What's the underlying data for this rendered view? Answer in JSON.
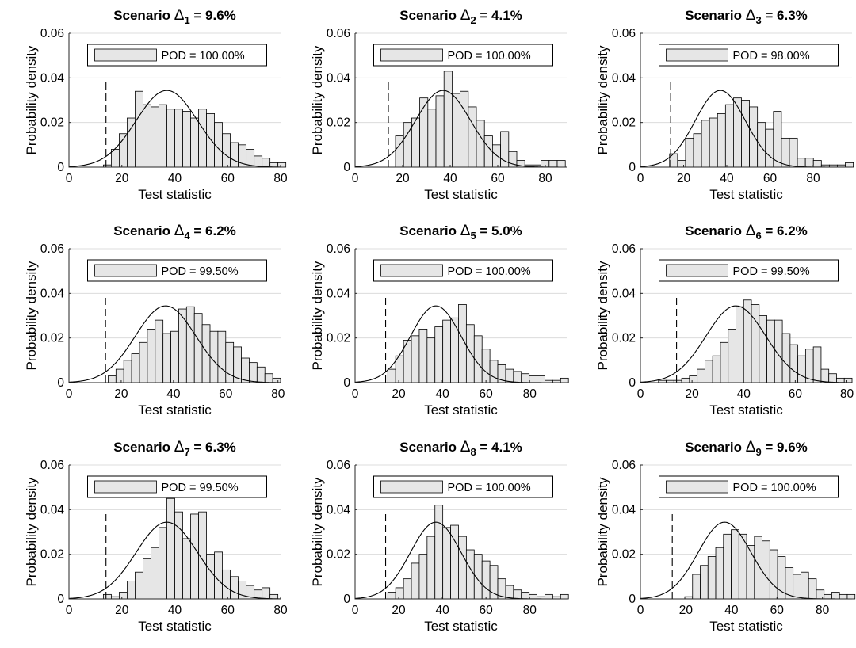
{
  "figure": {
    "ylabel": "Probability density",
    "xlabel": "Test statistic",
    "title_prefix": "Scenario ",
    "delta_symbol": "Δ"
  },
  "chart_data": [
    {
      "type": "bar",
      "title_sub": "1",
      "title_value": " = 9.6%",
      "legend": "POD = 100.00%",
      "xlim": [
        0,
        80
      ],
      "xticks": [
        0,
        20,
        40,
        60,
        80
      ],
      "ylim": [
        0,
        0.06
      ],
      "yticks": [
        "0",
        "0.02",
        "0.04",
        "0.06"
      ],
      "grid": true,
      "legend_position": "top",
      "threshold": 14,
      "normal_fit": {
        "mean": 37,
        "sd": 11.6
      },
      "bin_width": 3,
      "bin_starts": [
        13,
        16,
        19,
        22,
        25,
        28,
        31,
        34,
        37,
        40,
        43,
        46,
        49,
        52,
        55,
        58,
        61,
        64,
        67,
        70,
        73,
        76,
        79
      ],
      "values": [
        0.001,
        0.008,
        0.015,
        0.022,
        0.034,
        0.028,
        0.027,
        0.028,
        0.026,
        0.026,
        0.025,
        0.022,
        0.026,
        0.024,
        0.02,
        0.015,
        0.011,
        0.01,
        0.008,
        0.005,
        0.004,
        0.002,
        0.002
      ]
    },
    {
      "type": "bar",
      "title_sub": "2",
      "title_value": " = 4.1%",
      "legend": "POD = 100.00%",
      "xlim": [
        0,
        89
      ],
      "xticks": [
        0,
        20,
        40,
        60,
        80
      ],
      "ylim": [
        0,
        0.06
      ],
      "yticks": [
        "0",
        "0.02",
        "0.04",
        "0.06"
      ],
      "grid": true,
      "legend_position": "top",
      "threshold": 14,
      "normal_fit": {
        "mean": 37,
        "sd": 11.6
      },
      "bin_width": 3.4,
      "bin_starts": [
        17,
        20.4,
        23.8,
        27.2,
        30.6,
        34,
        37.4,
        40.8,
        44.2,
        47.6,
        51,
        54.4,
        57.8,
        61.2,
        64.6,
        68,
        71.4,
        74.8,
        78.2,
        81.6,
        85
      ],
      "values": [
        0.014,
        0.02,
        0.022,
        0.031,
        0.026,
        0.032,
        0.043,
        0.033,
        0.034,
        0.027,
        0.021,
        0.014,
        0.01,
        0.016,
        0.007,
        0.003,
        0.001,
        0.001,
        0.003,
        0.003,
        0.003
      ]
    },
    {
      "type": "bar",
      "title_sub": "3",
      "title_value": " = 6.3%",
      "legend": "POD = 98.00%",
      "xlim": [
        0,
        98
      ],
      "xticks": [
        0,
        20,
        40,
        60,
        80
      ],
      "ylim": [
        0,
        0.06
      ],
      "yticks": [
        "0",
        "0.02",
        "0.04",
        "0.06"
      ],
      "grid": true,
      "legend_position": "top",
      "threshold": 14,
      "normal_fit": {
        "mean": 37,
        "sd": 11.6
      },
      "bin_width": 3.7,
      "bin_starts": [
        13.5,
        17.2,
        20.9,
        24.6,
        28.3,
        32,
        35.7,
        39.4,
        43.1,
        46.8,
        50.5,
        54.2,
        57.9,
        61.6,
        65.3,
        69,
        72.7,
        76.4,
        80.1,
        83.8,
        87.5,
        91.2,
        94.9
      ],
      "values": [
        0.006,
        0.003,
        0.013,
        0.015,
        0.021,
        0.022,
        0.024,
        0.028,
        0.031,
        0.03,
        0.027,
        0.02,
        0.017,
        0.025,
        0.013,
        0.013,
        0.004,
        0.004,
        0.003,
        0.001,
        0.001,
        0.001,
        0.002
      ]
    },
    {
      "type": "bar",
      "title_sub": "4",
      "title_value": " = 6.2%",
      "legend": "POD = 99.50%",
      "xlim": [
        0,
        81
      ],
      "xticks": [
        0,
        20,
        40,
        60,
        80
      ],
      "ylim": [
        0,
        0.06
      ],
      "yticks": [
        "0",
        "0.02",
        "0.04",
        "0.06"
      ],
      "grid": true,
      "legend_position": "top",
      "threshold": 14,
      "normal_fit": {
        "mean": 37,
        "sd": 11.6
      },
      "bin_width": 3,
      "bin_starts": [
        15,
        18,
        21,
        24,
        27,
        30,
        33,
        36,
        39,
        42,
        45,
        48,
        51,
        54,
        57,
        60,
        63,
        66,
        69,
        72,
        75,
        78
      ],
      "values": [
        0.003,
        0.006,
        0.01,
        0.013,
        0.018,
        0.024,
        0.028,
        0.022,
        0.023,
        0.033,
        0.034,
        0.031,
        0.026,
        0.023,
        0.023,
        0.018,
        0.016,
        0.011,
        0.009,
        0.007,
        0.004,
        0.002
      ]
    },
    {
      "type": "bar",
      "title_sub": "5",
      "title_value": " = 5.0%",
      "legend": "POD = 100.00%",
      "xlim": [
        0,
        97
      ],
      "xticks": [
        0,
        20,
        40,
        60,
        80
      ],
      "ylim": [
        0,
        0.06
      ],
      "yticks": [
        "0",
        "0.02",
        "0.04",
        "0.06"
      ],
      "grid": true,
      "legend_position": "top",
      "threshold": 14,
      "normal_fit": {
        "mean": 37,
        "sd": 11.6
      },
      "bin_width": 3.6,
      "bin_starts": [
        15,
        18.6,
        22.2,
        25.8,
        29.4,
        33,
        36.6,
        40.2,
        43.8,
        47.4,
        51,
        54.6,
        58.2,
        61.8,
        65.4,
        69,
        72.6,
        76.2,
        79.8,
        83.4,
        87,
        90.6,
        94.2
      ],
      "values": [
        0.006,
        0.012,
        0.019,
        0.021,
        0.024,
        0.02,
        0.025,
        0.028,
        0.029,
        0.035,
        0.026,
        0.021,
        0.015,
        0.01,
        0.008,
        0.006,
        0.005,
        0.004,
        0.003,
        0.003,
        0.001,
        0.001,
        0.002
      ]
    },
    {
      "type": "bar",
      "title_sub": "6",
      "title_value": " = 6.2%",
      "legend": "POD = 99.50%",
      "xlim": [
        0,
        82
      ],
      "xticks": [
        0,
        20,
        40,
        60,
        80
      ],
      "ylim": [
        0,
        0.06
      ],
      "yticks": [
        "0",
        "0.02",
        "0.04",
        "0.06"
      ],
      "grid": true,
      "legend_position": "top",
      "threshold": 14,
      "normal_fit": {
        "mean": 37,
        "sd": 11.6
      },
      "bin_width": 3,
      "bin_starts": [
        7,
        10,
        13,
        16,
        19,
        22,
        25,
        28,
        31,
        34,
        37,
        40,
        43,
        46,
        49,
        52,
        55,
        58,
        61,
        64,
        67,
        70,
        73,
        76,
        79
      ],
      "values": [
        0.001,
        0.001,
        0.001,
        0.002,
        0.003,
        0.006,
        0.01,
        0.012,
        0.018,
        0.024,
        0.034,
        0.037,
        0.035,
        0.03,
        0.028,
        0.028,
        0.022,
        0.017,
        0.012,
        0.015,
        0.016,
        0.006,
        0.004,
        0.002,
        0.002
      ]
    },
    {
      "type": "bar",
      "title_sub": "7",
      "title_value": " = 6.3%",
      "legend": "POD = 99.50%",
      "xlim": [
        0,
        80
      ],
      "xticks": [
        0,
        20,
        40,
        60,
        80
      ],
      "ylim": [
        0,
        0.06
      ],
      "yticks": [
        "0",
        "0.02",
        "0.04",
        "0.06"
      ],
      "grid": true,
      "legend_position": "top",
      "threshold": 14,
      "normal_fit": {
        "mean": 37,
        "sd": 11.6
      },
      "bin_width": 3,
      "bin_starts": [
        13,
        16,
        19,
        22,
        25,
        28,
        31,
        34,
        37,
        40,
        43,
        46,
        49,
        52,
        55,
        58,
        61,
        64,
        67,
        70,
        73,
        76
      ],
      "values": [
        0.002,
        0.001,
        0.003,
        0.008,
        0.012,
        0.018,
        0.023,
        0.032,
        0.045,
        0.039,
        0.027,
        0.038,
        0.039,
        0.02,
        0.021,
        0.013,
        0.01,
        0.008,
        0.006,
        0.004,
        0.005,
        0.002
      ]
    },
    {
      "type": "bar",
      "title_sub": "8",
      "title_value": " = 4.1%",
      "legend": "POD = 100.00%",
      "xlim": [
        0,
        97
      ],
      "xticks": [
        0,
        20,
        40,
        60,
        80
      ],
      "ylim": [
        0,
        0.06
      ],
      "yticks": [
        "0",
        "0.02",
        "0.04",
        "0.06"
      ],
      "grid": true,
      "legend_position": "top",
      "threshold": 14,
      "normal_fit": {
        "mean": 37,
        "sd": 11.6
      },
      "bin_width": 3.6,
      "bin_starts": [
        15,
        18.6,
        22.2,
        25.8,
        29.4,
        33,
        36.6,
        40.2,
        43.8,
        47.4,
        51,
        54.6,
        58.2,
        61.8,
        65.4,
        69,
        72.6,
        76.2,
        79.8,
        83.4,
        87,
        90.6,
        94.2
      ],
      "values": [
        0.003,
        0.005,
        0.009,
        0.016,
        0.02,
        0.028,
        0.042,
        0.032,
        0.033,
        0.028,
        0.022,
        0.02,
        0.017,
        0.015,
        0.009,
        0.006,
        0.004,
        0.003,
        0.002,
        0.001,
        0.002,
        0.001,
        0.002
      ]
    },
    {
      "type": "bar",
      "title_sub": "9",
      "title_value": " = 9.6%",
      "legend": "POD = 100.00%",
      "xlim": [
        0,
        93
      ],
      "xticks": [
        0,
        20,
        40,
        60,
        80
      ],
      "ylim": [
        0,
        0.06
      ],
      "yticks": [
        "0",
        "0.02",
        "0.04",
        "0.06"
      ],
      "grid": true,
      "legend_position": "top",
      "threshold": 14,
      "normal_fit": {
        "mean": 37,
        "sd": 11.6
      },
      "bin_width": 3.4,
      "bin_starts": [
        19.5,
        22.9,
        26.3,
        29.7,
        33.1,
        36.5,
        39.9,
        43.3,
        46.7,
        50.1,
        53.5,
        56.9,
        60.3,
        63.7,
        67.1,
        70.5,
        73.9,
        77.3,
        80.7,
        84.1,
        87.5,
        90.9
      ],
      "values": [
        0.001,
        0.011,
        0.015,
        0.019,
        0.023,
        0.029,
        0.031,
        0.029,
        0.024,
        0.028,
        0.026,
        0.022,
        0.019,
        0.014,
        0.011,
        0.012,
        0.009,
        0.004,
        0.002,
        0.003,
        0.002,
        0.002
      ]
    }
  ]
}
